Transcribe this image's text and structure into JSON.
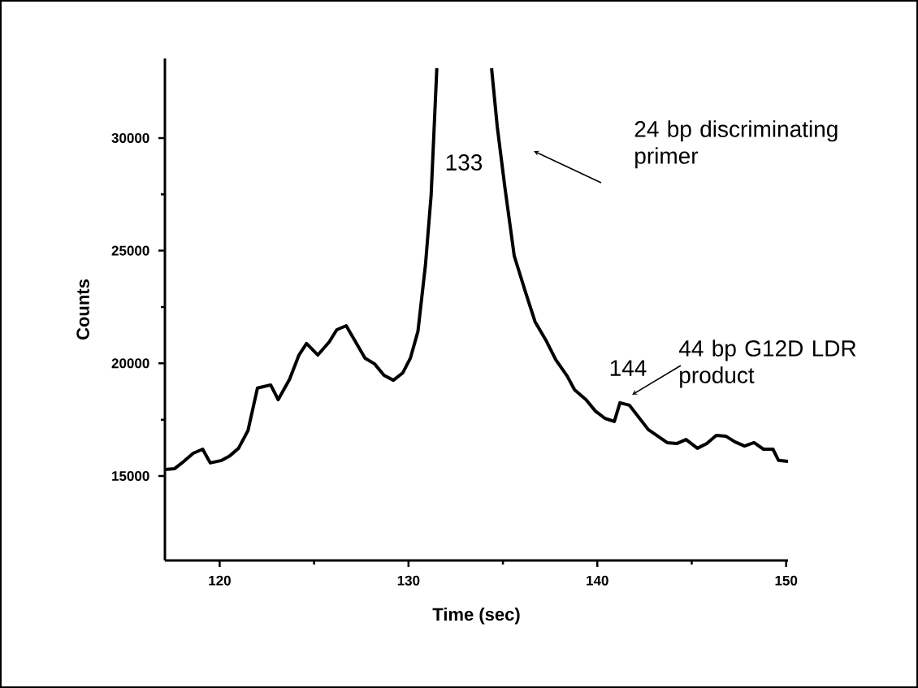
{
  "chart_data": {
    "type": "line",
    "xlabel": "Time (sec)",
    "ylabel": "Counts",
    "xlim": [
      117.1,
      150.1
    ],
    "ylim": [
      11250,
      33530
    ],
    "xticks": [
      120,
      130,
      140,
      150
    ],
    "yticks": [
      15000,
      20000,
      25000,
      30000
    ],
    "series": [
      {
        "color": "#000000",
        "x": [
          117.1,
          117.6,
          118.0,
          118.6,
          119.1,
          119.5,
          120.1,
          120.5,
          121.0,
          121.5,
          122.0,
          122.7,
          123.1,
          123.7,
          124.2,
          124.6,
          125.2,
          125.8,
          126.2,
          126.7,
          127.2,
          127.7,
          128.2,
          128.7,
          129.2,
          129.7,
          130.1,
          130.5,
          130.9,
          131.2,
          131.5,
          133.0,
          134.4,
          134.7,
          135.1,
          135.6,
          136.2,
          136.7,
          137.3,
          137.8,
          138.4,
          138.8,
          139.4,
          139.9,
          140.4,
          140.9,
          141.2,
          141.7,
          142.2,
          142.7,
          143.2,
          143.7,
          144.2,
          144.7,
          145.3,
          145.8,
          146.3,
          146.8,
          147.3,
          147.8,
          148.3,
          148.8,
          149.3,
          149.6,
          150.1
        ],
        "values": [
          15290,
          15320,
          15580,
          16010,
          16190,
          15580,
          15690,
          15870,
          16230,
          17020,
          18900,
          19040,
          18390,
          19290,
          20370,
          20880,
          20370,
          20950,
          21490,
          21670,
          20950,
          20230,
          19980,
          19470,
          19250,
          19580,
          20230,
          21420,
          24380,
          27480,
          33100,
          null,
          33100,
          30510,
          27840,
          24770,
          23150,
          21850,
          20990,
          20160,
          19440,
          18820,
          18390,
          17880,
          17560,
          17420,
          18250,
          18140,
          17600,
          17060,
          16770,
          16480,
          16440,
          16620,
          16230,
          16440,
          16800,
          16770,
          16510,
          16330,
          16480,
          16190,
          16190,
          15690,
          15650
        ]
      }
    ],
    "annotations": [
      "133",
      "144",
      "24 bp discriminating primer",
      "44 bp G12D LDR product"
    ]
  }
}
